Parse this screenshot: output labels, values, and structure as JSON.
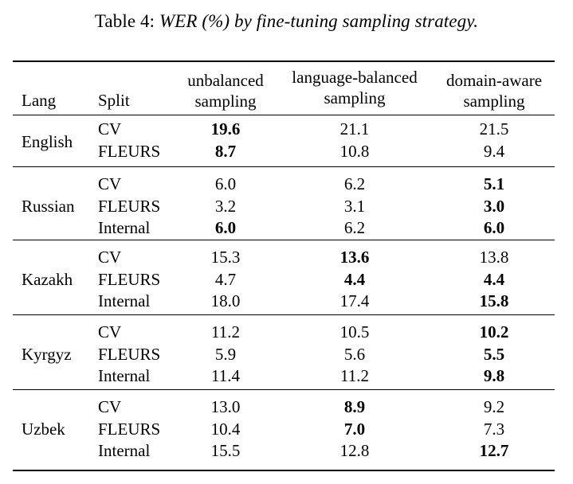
{
  "caption": {
    "label": "Table 4:",
    "title": "WER (%) by fine-tuning sampling strategy."
  },
  "table": {
    "headers": {
      "lang": "Lang",
      "split": "Split",
      "col1": "unbalanced sampling",
      "col1_line1": "unbalanced",
      "col1_line2": "sampling",
      "col2": "language-balanced sampling",
      "col2_line1": "language-balanced",
      "col2_line2": "sampling",
      "col3": "domain-aware sampling",
      "col3_line1": "domain-aware",
      "col3_line2": "sampling"
    },
    "groups": [
      {
        "lang": "English",
        "rows": [
          {
            "split": "CV",
            "unbalanced": "19.6",
            "language_balanced": "21.1",
            "domain_aware": "21.5",
            "bold": "unbalanced"
          },
          {
            "split": "FLEURS",
            "unbalanced": "8.7",
            "language_balanced": "10.8",
            "domain_aware": "9.4",
            "bold": "unbalanced"
          }
        ]
      },
      {
        "lang": "Russian",
        "rows": [
          {
            "split": "CV",
            "unbalanced": "6.0",
            "language_balanced": "6.2",
            "domain_aware": "5.1",
            "bold": "domain_aware"
          },
          {
            "split": "FLEURS",
            "unbalanced": "3.2",
            "language_balanced": "3.1",
            "domain_aware": "3.0",
            "bold": "domain_aware"
          },
          {
            "split": "Internal",
            "unbalanced": "6.0",
            "language_balanced": "6.2",
            "domain_aware": "6.0",
            "bold": "unbalanced,domain_aware"
          }
        ]
      },
      {
        "lang": "Kazakh",
        "rows": [
          {
            "split": "CV",
            "unbalanced": "15.3",
            "language_balanced": "13.6",
            "domain_aware": "13.8",
            "bold": "language_balanced"
          },
          {
            "split": "FLEURS",
            "unbalanced": "4.7",
            "language_balanced": "4.4",
            "domain_aware": "4.4",
            "bold": "language_balanced,domain_aware"
          },
          {
            "split": "Internal",
            "unbalanced": "18.0",
            "language_balanced": "17.4",
            "domain_aware": "15.8",
            "bold": "domain_aware"
          }
        ]
      },
      {
        "lang": "Kyrgyz",
        "rows": [
          {
            "split": "CV",
            "unbalanced": "11.2",
            "language_balanced": "10.5",
            "domain_aware": "10.2",
            "bold": "domain_aware"
          },
          {
            "split": "FLEURS",
            "unbalanced": "5.9",
            "language_balanced": "5.6",
            "domain_aware": "5.5",
            "bold": "domain_aware"
          },
          {
            "split": "Internal",
            "unbalanced": "11.4",
            "language_balanced": "11.2",
            "domain_aware": "9.8",
            "bold": "domain_aware"
          }
        ]
      },
      {
        "lang": "Uzbek",
        "rows": [
          {
            "split": "CV",
            "unbalanced": "13.0",
            "language_balanced": "8.9",
            "domain_aware": "9.2",
            "bold": "language_balanced"
          },
          {
            "split": "FLEURS",
            "unbalanced": "10.4",
            "language_balanced": "7.0",
            "domain_aware": "7.3",
            "bold": "language_balanced"
          },
          {
            "split": "Internal",
            "unbalanced": "15.5",
            "language_balanced": "12.8",
            "domain_aware": "12.7",
            "bold": "domain_aware"
          }
        ]
      }
    ]
  }
}
